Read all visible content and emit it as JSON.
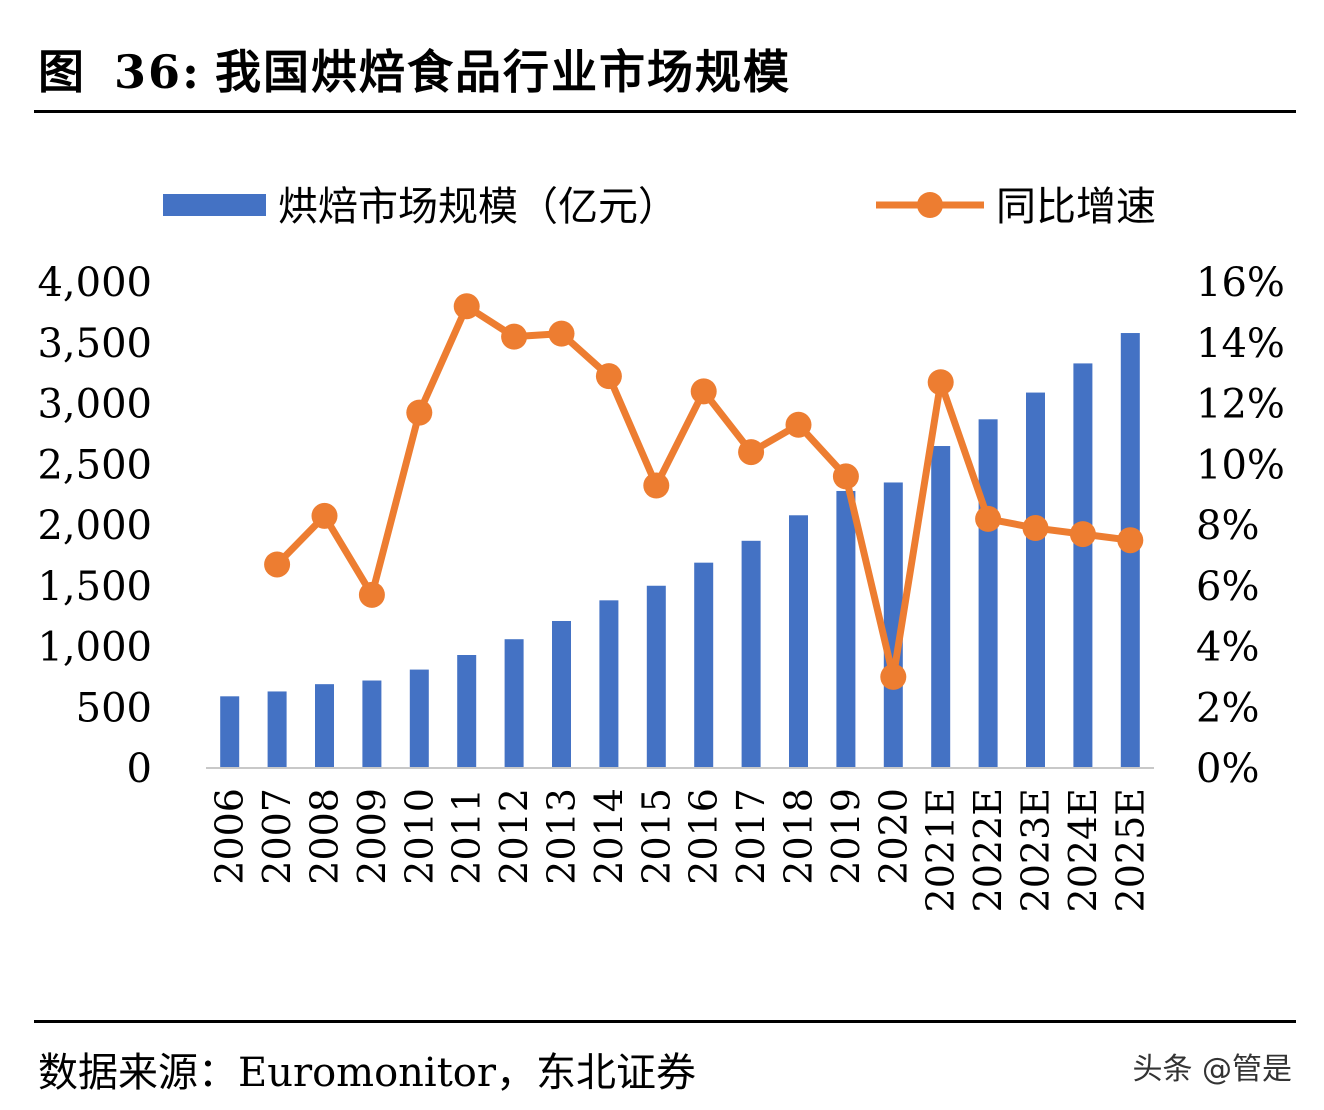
{
  "figure": {
    "label": "图",
    "number": "36:",
    "title": "我国烘焙食品行业市场规模"
  },
  "source": "数据来源：Euromonitor，东北证券",
  "watermark": "头条 @管是",
  "chart_data": {
    "type": "bar+line",
    "categories": [
      "2006",
      "2007",
      "2008",
      "2009",
      "2010",
      "2011",
      "2012",
      "2013",
      "2014",
      "2015",
      "2016",
      "2017",
      "2018",
      "2019",
      "2020",
      "2021E",
      "2022E",
      "2023E",
      "2024E",
      "2025E"
    ],
    "series": [
      {
        "name": "烘焙市场规模（亿元）",
        "type": "bar",
        "axis": "left",
        "color": "#4472C4",
        "values": [
          590,
          630,
          690,
          720,
          810,
          930,
          1060,
          1210,
          1380,
          1500,
          1690,
          1870,
          2080,
          2280,
          2350,
          2650,
          2870,
          3090,
          3330,
          3580
        ]
      },
      {
        "name": "同比增速",
        "type": "line",
        "axis": "right",
        "color": "#ED7D31",
        "unit": "%",
        "values": [
          null,
          6.7,
          8.3,
          5.7,
          11.7,
          15.2,
          14.2,
          14.3,
          12.9,
          9.3,
          12.4,
          10.4,
          11.3,
          9.6,
          3.0,
          12.7,
          8.2,
          7.9,
          7.7,
          7.5
        ]
      }
    ],
    "y_left": {
      "min": 0,
      "max": 4000,
      "ticks": [
        "0",
        "500",
        "1,000",
        "1,500",
        "2,000",
        "2,500",
        "3,000",
        "3,500",
        "4,000"
      ]
    },
    "y_right": {
      "min": 0,
      "max": 16,
      "ticks": [
        "0%",
        "2%",
        "4%",
        "6%",
        "8%",
        "10%",
        "12%",
        "14%",
        "16%"
      ]
    },
    "legend": {
      "bar_label": "烘焙市场规模（亿元）",
      "line_label": "同比增速",
      "position": "top"
    }
  }
}
